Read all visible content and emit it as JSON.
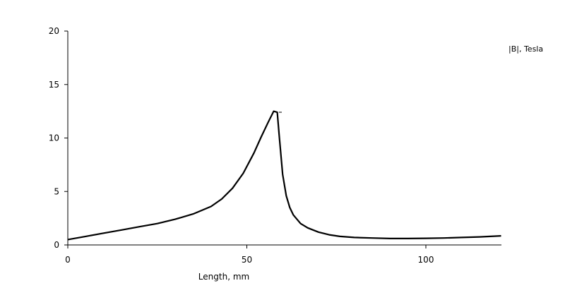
{
  "chart_data": {
    "type": "line",
    "title": "",
    "xlabel": "Length, mm",
    "ylabel": "",
    "xlim": [
      0,
      121
    ],
    "ylim": [
      0,
      20
    ],
    "x_ticks": [
      0,
      50,
      100
    ],
    "y_ticks": [
      0,
      5,
      10,
      15,
      20
    ],
    "grid": false,
    "legend": "top-right",
    "series": [
      {
        "name": "|B|, Tesla",
        "color": "#000000",
        "x": [
          0,
          5,
          10,
          15,
          20,
          25,
          30,
          35,
          40,
          43,
          46,
          49,
          52,
          54,
          56,
          57.5,
          58.5,
          59,
          60,
          61,
          62,
          63,
          65,
          67,
          70,
          73,
          76,
          80,
          85,
          90,
          95,
          100,
          105,
          110,
          115,
          121
        ],
        "y": [
          0.5,
          0.8,
          1.1,
          1.4,
          1.7,
          2.0,
          2.4,
          2.9,
          3.6,
          4.3,
          5.3,
          6.7,
          8.6,
          10.1,
          11.5,
          12.5,
          12.4,
          10.4,
          6.6,
          4.6,
          3.5,
          2.8,
          2.0,
          1.6,
          1.2,
          0.95,
          0.8,
          0.7,
          0.65,
          0.6,
          0.6,
          0.62,
          0.65,
          0.7,
          0.75,
          0.85
        ]
      }
    ]
  }
}
